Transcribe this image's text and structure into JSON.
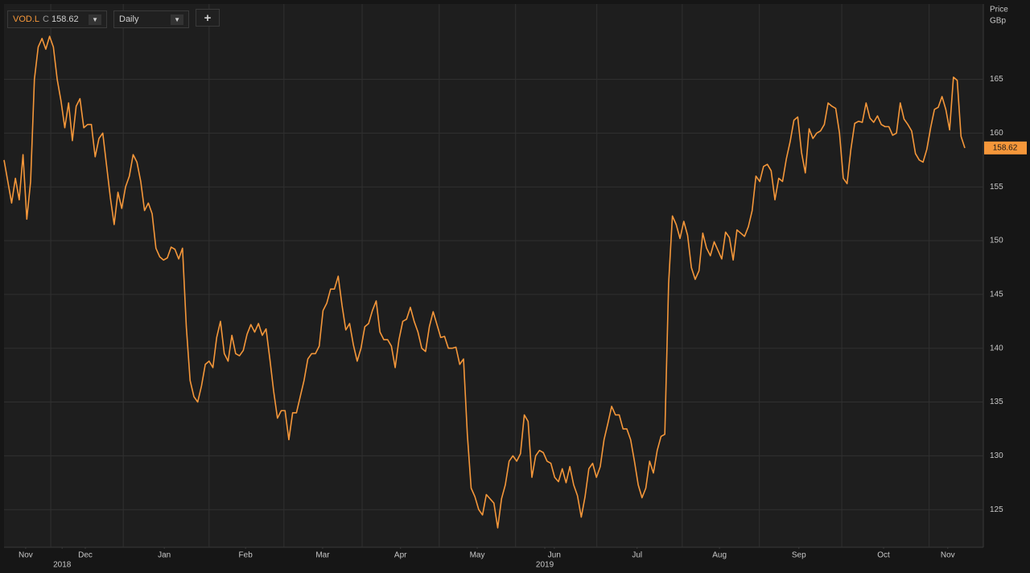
{
  "chart_data": {
    "type": "line",
    "ylabel": "Price",
    "yunit": "GBp",
    "price_type": "C",
    "interval": "Daily",
    "add_button": "+",
    "series": [
      {
        "name": "VOD.L",
        "color": "#f5973a",
        "values": [
          157.5,
          155.5,
          153.5,
          155.8,
          153.8,
          158,
          152,
          155.5,
          165,
          168,
          168.8,
          167.8,
          169,
          168,
          165,
          163,
          160.5,
          162.8,
          159.3,
          162.5,
          163.2,
          160.5,
          160.8,
          160.8,
          157.8,
          159.5,
          160,
          157,
          154,
          151.5,
          154.5,
          153,
          155,
          156,
          158,
          157.3,
          155.5,
          152.8,
          153.5,
          152.5,
          149.3,
          148.5,
          148.2,
          148.4,
          149.4,
          149.2,
          148.3,
          149.3,
          142,
          137,
          135.5,
          135,
          136.5,
          138.5,
          138.8,
          138.2,
          141,
          142.5,
          139.5,
          138.8,
          141.2,
          139.5,
          139.3,
          139.8,
          141.3,
          142.2,
          141.5,
          142.3,
          141.2,
          141.8,
          139,
          136,
          133.5,
          134.2,
          134.2,
          131.5,
          134,
          134,
          135.5,
          137,
          139,
          139.5,
          139.5,
          140.2,
          143.5,
          144.2,
          145.5,
          145.5,
          146.7,
          144,
          141.7,
          142.3,
          140.3,
          138.8,
          140,
          142,
          142.3,
          143.5,
          144.4,
          141.5,
          140.8,
          140.8,
          140.2,
          138.2,
          140.8,
          142.5,
          142.7,
          143.8,
          142.5,
          141.5,
          140,
          139.7,
          142,
          143.4,
          142.2,
          141,
          141.1,
          140,
          140,
          140.1,
          138.5,
          139,
          132,
          127,
          126.2,
          125,
          124.5,
          126.4,
          126,
          125.6,
          123.3,
          126,
          127.3,
          129.5,
          130,
          129.5,
          130.2,
          133.8,
          133.2,
          128,
          130,
          130.5,
          130.3,
          129.5,
          129.3,
          128,
          127.6,
          128.8,
          127.5,
          129,
          127.3,
          126.3,
          124.3,
          126.2,
          128.8,
          129.3,
          128,
          129,
          131.5,
          133,
          134.6,
          133.8,
          133.8,
          132.5,
          132.5,
          131.5,
          129.5,
          127.3,
          126.1,
          127,
          129.5,
          128.4,
          130.5,
          131.8,
          132,
          146,
          152.3,
          151.5,
          150.2,
          151.8,
          150.5,
          147.5,
          146.4,
          147.2,
          150.7,
          149.3,
          148.6,
          149.9,
          149.1,
          148.3,
          150.8,
          150.3,
          148.2,
          151,
          150.7,
          150.4,
          151.3,
          152.8,
          156,
          155.5,
          156.9,
          157.1,
          156.5,
          153.8,
          155.8,
          155.5,
          157.6,
          159.2,
          161.2,
          161.5,
          158.2,
          156.3,
          160.4,
          159.5,
          160,
          160.2,
          160.8,
          162.8,
          162.5,
          162.3,
          160,
          155.8,
          155.3,
          158.5,
          160.9,
          161.1,
          161,
          162.8,
          161.4,
          161,
          161.6,
          160.8,
          160.6,
          160.6,
          159.8,
          160,
          162.8,
          161.3,
          160.8,
          160.2,
          158.1,
          157.5,
          157.3,
          158.5,
          160.5,
          162.2,
          162.4,
          163.4,
          162.2,
          160.3,
          165.2,
          164.9,
          159.7,
          158.62
        ]
      }
    ],
    "xlim": [
      0,
      253
    ],
    "xticks": [
      {
        "value": 5.7,
        "label": "Nov"
      },
      {
        "value": 21.4,
        "label": "Dec"
      },
      {
        "value": 42.2,
        "label": "Jan"
      },
      {
        "value": 63.6,
        "label": "Feb"
      },
      {
        "value": 83.9,
        "label": "Mar"
      },
      {
        "value": 104.4,
        "label": "Apr"
      },
      {
        "value": 124.6,
        "label": "May"
      },
      {
        "value": 144.9,
        "label": "Jun"
      },
      {
        "value": 166.7,
        "label": "Jul"
      },
      {
        "value": 188.4,
        "label": "Aug"
      },
      {
        "value": 209.3,
        "label": "Sep"
      },
      {
        "value": 231.6,
        "label": "Oct"
      },
      {
        "value": 248.5,
        "label": "Nov"
      }
    ],
    "years": [
      {
        "value": 15.3,
        "label": "2018"
      },
      {
        "value": 142.4,
        "label": "2019"
      }
    ],
    "xgrid": [
      12.3,
      31.4,
      54,
      73.7,
      94.3,
      114.6,
      134.7,
      156.1,
      178.6,
      198.9,
      220.6,
      243.6
    ],
    "ylim": [
      121.5,
      172
    ],
    "yticks": [
      125,
      130,
      135,
      140,
      145,
      150,
      155,
      160,
      165
    ],
    "grid": true
  }
}
